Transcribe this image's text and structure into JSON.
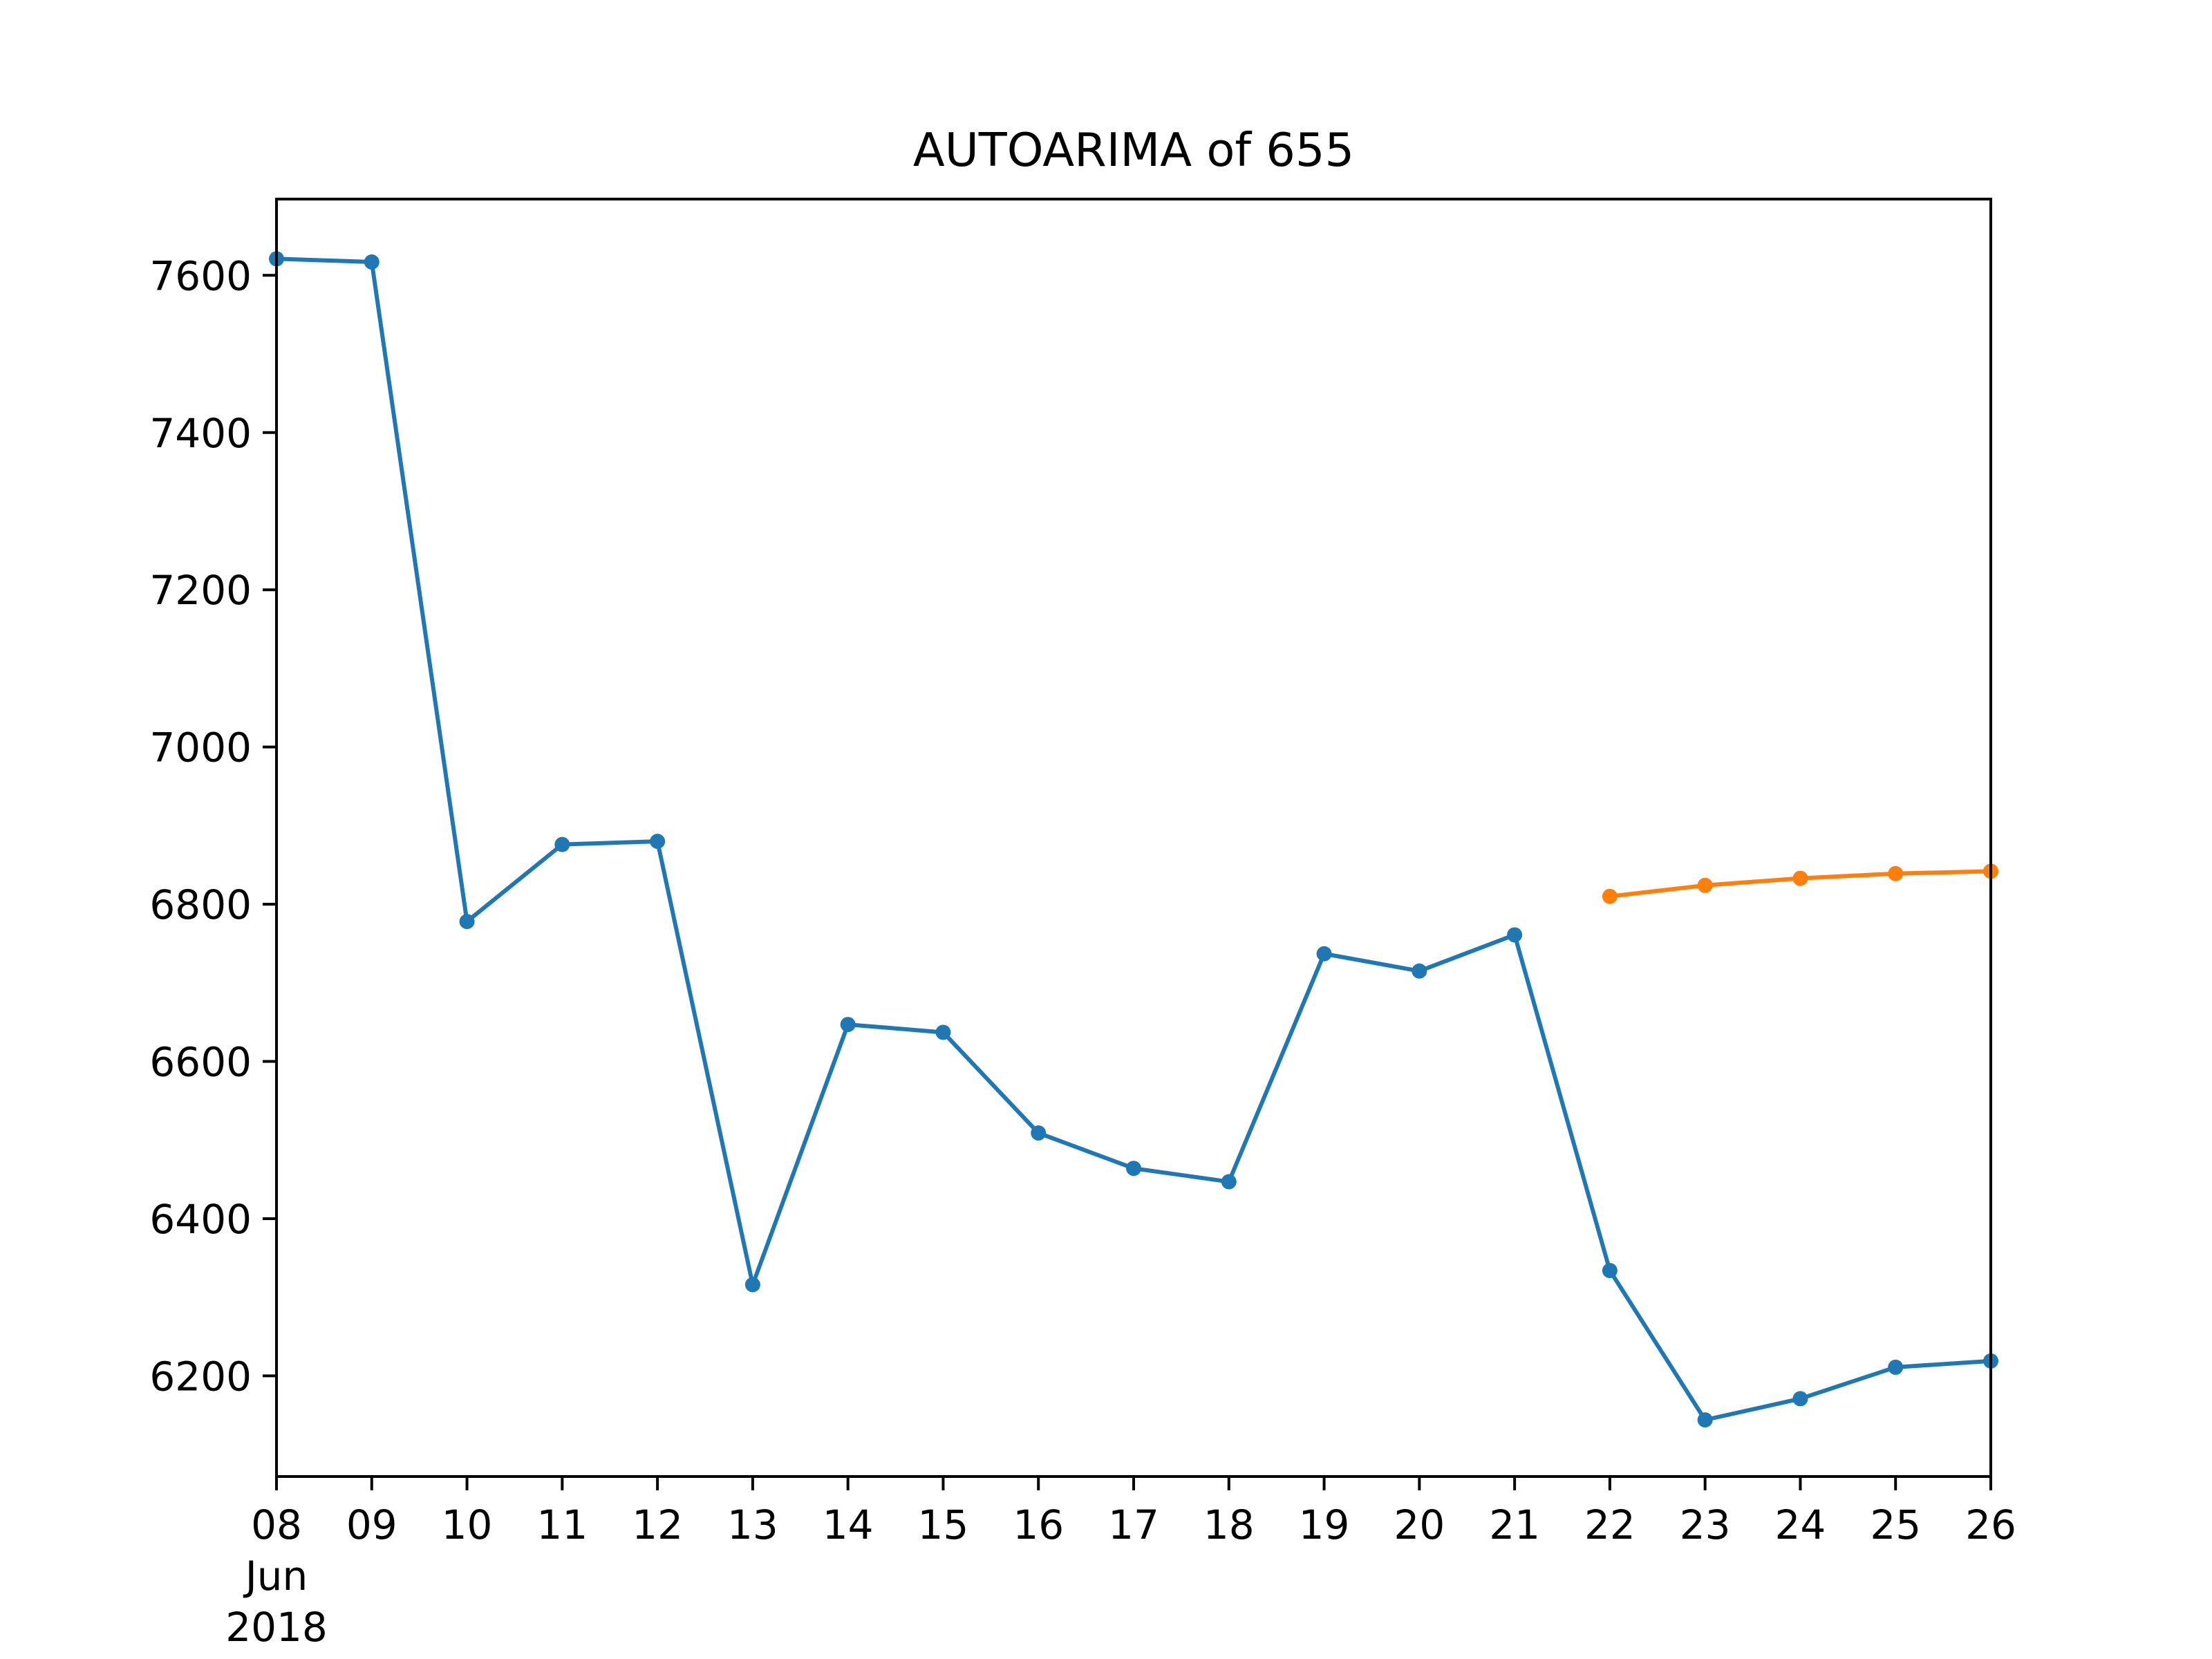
{
  "chart_data": {
    "type": "line",
    "title": "AUTOARIMA of 655",
    "xlabel": "",
    "ylabel": "",
    "x_ticks": [
      "08",
      "09",
      "10",
      "11",
      "12",
      "13",
      "14",
      "15",
      "16",
      "17",
      "18",
      "19",
      "20",
      "21",
      "22",
      "23",
      "24",
      "25",
      "26"
    ],
    "x_tick_sublabels": [
      "Jun",
      "2018"
    ],
    "xlim": [
      "2018-06-08",
      "2018-06-26"
    ],
    "y_ticks": [
      6200,
      6400,
      6600,
      6800,
      7000,
      7200,
      7400,
      7600
    ],
    "ylim": [
      6072,
      7697
    ],
    "grid": false,
    "series": [
      {
        "color": "#1f77b4",
        "x": [
          "2018-06-08",
          "2018-06-09",
          "2018-06-10",
          "2018-06-11",
          "2018-06-12",
          "2018-06-13",
          "2018-06-14",
          "2018-06-15",
          "2018-06-16",
          "2018-06-17",
          "2018-06-18",
          "2018-06-19",
          "2018-06-20",
          "2018-06-21",
          "2018-06-22",
          "2018-06-23",
          "2018-06-24",
          "2018-06-25",
          "2018-06-26"
        ],
        "y": [
          7621,
          7617,
          6778,
          6876,
          6880,
          6316,
          6647,
          6637,
          6509,
          6464,
          6447,
          6737,
          6715,
          6761,
          6334,
          6144,
          6171,
          6211,
          6219
        ]
      },
      {
        "color": "#ff7f0e",
        "x": [
          "2018-06-22",
          "2018-06-23",
          "2018-06-24",
          "2018-06-25",
          "2018-06-26"
        ],
        "y": [
          6810,
          6824,
          6833,
          6839,
          6842
        ]
      }
    ]
  }
}
